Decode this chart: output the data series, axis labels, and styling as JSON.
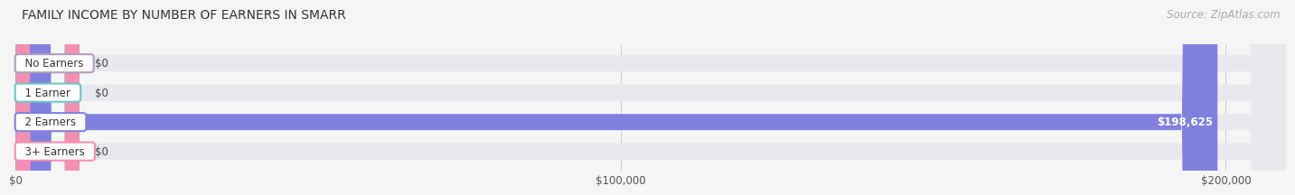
{
  "title": "FAMILY INCOME BY NUMBER OF EARNERS IN SMARR",
  "source": "Source: ZipAtlas.com",
  "categories": [
    "No Earners",
    "1 Earner",
    "2 Earners",
    "3+ Earners"
  ],
  "values": [
    0,
    0,
    198625,
    0
  ],
  "bar_colors": [
    "#b39dbd",
    "#6ec6c6",
    "#8080e0",
    "#f48fb1"
  ],
  "background_color": "#f5f5f5",
  "bar_background": "#e8e8ee",
  "xlim": [
    0,
    210000
  ],
  "xticks": [
    0,
    100000,
    200000
  ],
  "xticklabels": [
    "$0",
    "$100,000",
    "$200,000"
  ],
  "title_fontsize": 10,
  "source_fontsize": 8.5,
  "bar_height": 0.55
}
